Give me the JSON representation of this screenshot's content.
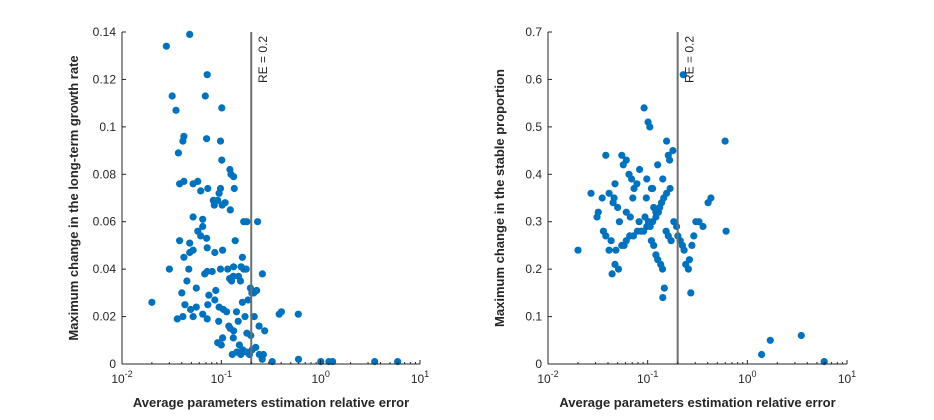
{
  "colors": {
    "marker": "#0072BD",
    "reference_line": "#6e6e6e",
    "axis": "#262626",
    "background": "#ffffff"
  },
  "chart_data": [
    {
      "type": "scatter",
      "xscale": "log",
      "xlim": [
        0.01,
        10
      ],
      "ylim": [
        0,
        0.14
      ],
      "xticks": [
        0.01,
        0.1,
        1,
        10
      ],
      "xtick_labels": [
        {
          "base": "10",
          "exp": "-2"
        },
        {
          "base": "10",
          "exp": "-1"
        },
        {
          "base": "10",
          "exp": "0"
        },
        {
          "base": "10",
          "exp": "1"
        }
      ],
      "yticks": [
        "0",
        "0.02",
        "0.04",
        "0.06",
        "0.08",
        "0.1",
        "0.12",
        "0.14"
      ],
      "xlabel": "Average parameters estimation relative error",
      "ylabel": "Maximum change in the long-term growth rate",
      "reference_line": {
        "x": 0.2,
        "label": "RE = 0.2"
      },
      "points": [
        [
          0.02,
          0.026
        ],
        [
          0.028,
          0.134
        ],
        [
          0.032,
          0.113
        ],
        [
          0.048,
          0.139
        ],
        [
          0.035,
          0.107
        ],
        [
          0.042,
          0.096
        ],
        [
          0.041,
          0.094
        ],
        [
          0.072,
          0.122
        ],
        [
          0.069,
          0.113
        ],
        [
          0.101,
          0.108
        ],
        [
          0.037,
          0.089
        ],
        [
          0.071,
          0.095
        ],
        [
          0.098,
          0.094
        ],
        [
          0.038,
          0.076
        ],
        [
          0.042,
          0.077
        ],
        [
          0.052,
          0.076
        ],
        [
          0.058,
          0.077
        ],
        [
          0.062,
          0.073
        ],
        [
          0.073,
          0.074
        ],
        [
          0.092,
          0.069
        ],
        [
          0.083,
          0.069
        ],
        [
          0.095,
          0.072
        ],
        [
          0.085,
          0.067
        ],
        [
          0.065,
          0.061
        ],
        [
          0.102,
          0.067
        ],
        [
          0.109,
          0.068
        ],
        [
          0.122,
          0.082
        ],
        [
          0.125,
          0.08
        ],
        [
          0.133,
          0.079
        ],
        [
          0.101,
          0.086
        ],
        [
          0.098,
          0.074
        ],
        [
          0.135,
          0.074
        ],
        [
          0.123,
          0.065
        ],
        [
          0.052,
          0.062
        ],
        [
          0.058,
          0.056
        ],
        [
          0.062,
          0.054
        ],
        [
          0.048,
          0.047
        ],
        [
          0.052,
          0.048
        ],
        [
          0.038,
          0.052
        ],
        [
          0.048,
          0.051
        ],
        [
          0.072,
          0.049
        ],
        [
          0.086,
          0.047
        ],
        [
          0.103,
          0.048
        ],
        [
          0.071,
          0.053
        ],
        [
          0.065,
          0.058
        ],
        [
          0.168,
          0.06
        ],
        [
          0.181,
          0.06
        ],
        [
          0.232,
          0.06
        ],
        [
          0.138,
          0.052
        ],
        [
          0.042,
          0.045
        ],
        [
          0.047,
          0.04
        ],
        [
          0.072,
          0.039
        ],
        [
          0.068,
          0.038
        ],
        [
          0.081,
          0.039
        ],
        [
          0.098,
          0.04
        ],
        [
          0.116,
          0.04
        ],
        [
          0.133,
          0.041
        ],
        [
          0.158,
          0.041
        ],
        [
          0.168,
          0.04
        ],
        [
          0.163,
          0.045
        ],
        [
          0.149,
          0.037
        ],
        [
          0.156,
          0.035
        ],
        [
          0.121,
          0.036
        ],
        [
          0.132,
          0.037
        ],
        [
          0.127,
          0.035
        ],
        [
          0.178,
          0.04
        ],
        [
          0.196,
          0.032
        ],
        [
          0.203,
          0.03
        ],
        [
          0.212,
          0.03
        ],
        [
          0.227,
          0.031
        ],
        [
          0.259,
          0.038
        ],
        [
          0.03,
          0.04
        ],
        [
          0.045,
          0.035
        ],
        [
          0.04,
          0.03
        ],
        [
          0.056,
          0.032
        ],
        [
          0.075,
          0.029
        ],
        [
          0.088,
          0.031
        ],
        [
          0.086,
          0.027
        ],
        [
          0.095,
          0.024
        ],
        [
          0.105,
          0.023
        ],
        [
          0.113,
          0.022
        ],
        [
          0.142,
          0.022
        ],
        [
          0.163,
          0.026
        ],
        [
          0.186,
          0.027
        ],
        [
          0.043,
          0.025
        ],
        [
          0.049,
          0.023
        ],
        [
          0.041,
          0.02
        ],
        [
          0.036,
          0.019
        ],
        [
          0.052,
          0.02
        ],
        [
          0.056,
          0.024
        ],
        [
          0.065,
          0.021
        ],
        [
          0.072,
          0.019
        ],
        [
          0.073,
          0.025
        ],
        [
          0.094,
          0.018
        ],
        [
          0.119,
          0.016
        ],
        [
          0.133,
          0.014
        ],
        [
          0.148,
          0.018
        ],
        [
          0.173,
          0.02
        ],
        [
          0.214,
          0.02
        ],
        [
          0.24,
          0.016
        ],
        [
          0.273,
          0.014
        ],
        [
          0.198,
          0.012
        ],
        [
          0.181,
          0.013
        ],
        [
          0.123,
          0.015
        ],
        [
          0.103,
          0.011
        ],
        [
          0.132,
          0.011
        ],
        [
          0.092,
          0.009
        ],
        [
          0.1,
          0.008
        ],
        [
          0.152,
          0.008
        ],
        [
          0.18,
          0.005
        ],
        [
          0.204,
          0.006
        ],
        [
          0.241,
          0.004
        ],
        [
          0.222,
          0.007
        ],
        [
          0.129,
          0.004
        ],
        [
          0.143,
          0.005
        ],
        [
          0.157,
          0.004
        ],
        [
          0.164,
          0.006
        ],
        [
          0.192,
          0.004
        ],
        [
          0.258,
          0.002
        ],
        [
          0.265,
          0.004
        ],
        [
          0.325,
          0.001
        ],
        [
          0.382,
          0.021
        ],
        [
          0.402,
          0.022
        ],
        [
          0.596,
          0.021
        ],
        [
          0.598,
          0.002
        ],
        [
          1.003,
          0.001
        ],
        [
          1.21,
          0.001
        ],
        [
          1.32,
          0.001
        ],
        [
          3.5,
          0.001
        ],
        [
          5.95,
          0.001
        ]
      ]
    },
    {
      "type": "scatter",
      "xscale": "log",
      "xlim": [
        0.01,
        10
      ],
      "ylim": [
        0,
        0.7
      ],
      "xticks": [
        0.01,
        0.1,
        1,
        10
      ],
      "xtick_labels": [
        {
          "base": "10",
          "exp": "-2"
        },
        {
          "base": "10",
          "exp": "-1"
        },
        {
          "base": "10",
          "exp": "0"
        },
        {
          "base": "10",
          "exp": "1"
        }
      ],
      "yticks": [
        "0",
        "0.1",
        "0.2",
        "0.3",
        "0.4",
        "0.5",
        "0.6",
        "0.7"
      ],
      "xlabel": "Average parameters estimation relative error",
      "ylabel": "Maximum change in the stable proportion",
      "reference_line": {
        "x": 0.2,
        "label": "RE = 0.2"
      },
      "points": [
        [
          0.02,
          0.24
        ],
        [
          0.027,
          0.36
        ],
        [
          0.031,
          0.31
        ],
        [
          0.032,
          0.32
        ],
        [
          0.035,
          0.35
        ],
        [
          0.038,
          0.44
        ],
        [
          0.041,
          0.36
        ],
        [
          0.036,
          0.28
        ],
        [
          0.038,
          0.27
        ],
        [
          0.041,
          0.24
        ],
        [
          0.043,
          0.26
        ],
        [
          0.046,
          0.35
        ],
        [
          0.045,
          0.34
        ],
        [
          0.047,
          0.38
        ],
        [
          0.05,
          0.33
        ],
        [
          0.052,
          0.3
        ],
        [
          0.055,
          0.44
        ],
        [
          0.061,
          0.43
        ],
        [
          0.057,
          0.42
        ],
        [
          0.065,
          0.4
        ],
        [
          0.069,
          0.39
        ],
        [
          0.071,
          0.35
        ],
        [
          0.073,
          0.37
        ],
        [
          0.078,
          0.38
        ],
        [
          0.083,
          0.41
        ],
        [
          0.092,
          0.54
        ],
        [
          0.101,
          0.51
        ],
        [
          0.098,
          0.39
        ],
        [
          0.097,
          0.35
        ],
        [
          0.105,
          0.5
        ],
        [
          0.109,
          0.37
        ],
        [
          0.112,
          0.37
        ],
        [
          0.115,
          0.33
        ],
        [
          0.121,
          0.32
        ],
        [
          0.126,
          0.42
        ],
        [
          0.142,
          0.39
        ],
        [
          0.155,
          0.47
        ],
        [
          0.161,
          0.44
        ],
        [
          0.166,
          0.43
        ],
        [
          0.179,
          0.45
        ],
        [
          0.168,
          0.37
        ],
        [
          0.155,
          0.36
        ],
        [
          0.145,
          0.35
        ],
        [
          0.138,
          0.34
        ],
        [
          0.132,
          0.33
        ],
        [
          0.128,
          0.32
        ],
        [
          0.121,
          0.31
        ],
        [
          0.112,
          0.3
        ],
        [
          0.106,
          0.29
        ],
        [
          0.098,
          0.29
        ],
        [
          0.091,
          0.28
        ],
        [
          0.086,
          0.28
        ],
        [
          0.079,
          0.28
        ],
        [
          0.072,
          0.27
        ],
        [
          0.066,
          0.27
        ],
        [
          0.061,
          0.26
        ],
        [
          0.058,
          0.25
        ],
        [
          0.055,
          0.25
        ],
        [
          0.048,
          0.24
        ],
        [
          0.047,
          0.21
        ],
        [
          0.051,
          0.2
        ],
        [
          0.044,
          0.19
        ],
        [
          0.061,
          0.32
        ],
        [
          0.067,
          0.31
        ],
        [
          0.082,
          0.3
        ],
        [
          0.094,
          0.31
        ],
        [
          0.102,
          0.3
        ],
        [
          0.109,
          0.26
        ],
        [
          0.115,
          0.25
        ],
        [
          0.121,
          0.23
        ],
        [
          0.126,
          0.22
        ],
        [
          0.135,
          0.21
        ],
        [
          0.141,
          0.2
        ],
        [
          0.147,
          0.16
        ],
        [
          0.142,
          0.14
        ],
        [
          0.153,
          0.28
        ],
        [
          0.161,
          0.27
        ],
        [
          0.172,
          0.26
        ],
        [
          0.183,
          0.3
        ],
        [
          0.195,
          0.29
        ],
        [
          0.201,
          0.27
        ],
        [
          0.212,
          0.26
        ],
        [
          0.223,
          0.25
        ],
        [
          0.232,
          0.24
        ],
        [
          0.241,
          0.21
        ],
        [
          0.256,
          0.2
        ],
        [
          0.271,
          0.15
        ],
        [
          0.262,
          0.22
        ],
        [
          0.278,
          0.25
        ],
        [
          0.29,
          0.27
        ],
        [
          0.305,
          0.3
        ],
        [
          0.327,
          0.3
        ],
        [
          0.359,
          0.29
        ],
        [
          0.404,
          0.34
        ],
        [
          0.431,
          0.35
        ],
        [
          0.598,
          0.47
        ],
        [
          0.612,
          0.28
        ],
        [
          0.227,
          0.61
        ],
        [
          1.39,
          0.02
        ],
        [
          1.7,
          0.05
        ],
        [
          3.48,
          0.06
        ],
        [
          5.9,
          0.005
        ]
      ]
    }
  ]
}
